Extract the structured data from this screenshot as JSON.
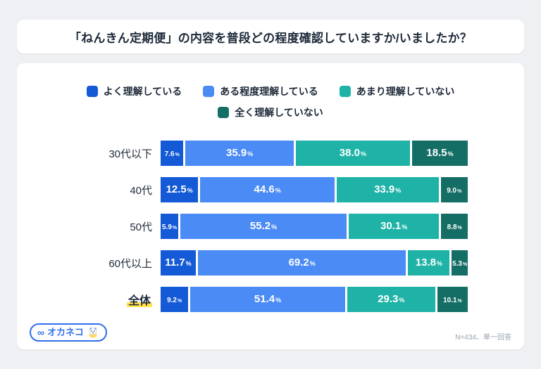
{
  "title": {
    "text": "「ねんきん定期便」の内容を普段どの程度確認していますか/いましたか？"
  },
  "legend": [
    {
      "label": "よく理解している",
      "color": "#1459d6"
    },
    {
      "label": "ある程度理解している",
      "color": "#4b8bf5"
    },
    {
      "label": "あまり理解していない",
      "color": "#1eb3a6"
    },
    {
      "label": "全く理解していない",
      "color": "#156e66"
    }
  ],
  "chart_data": {
    "type": "bar",
    "stacked": true,
    "orientation": "horizontal",
    "categories": [
      "30代以下",
      "40代",
      "50代",
      "60代以上",
      "全体"
    ],
    "series": [
      {
        "name": "よく理解している",
        "color": "#1459d6",
        "values": [
          7.6,
          12.5,
          5.9,
          11.7,
          9.2
        ]
      },
      {
        "name": "ある程度理解している",
        "color": "#4b8bf5",
        "values": [
          35.9,
          44.6,
          55.2,
          69.2,
          51.4
        ]
      },
      {
        "name": "あまり理解していない",
        "color": "#1eb3a6",
        "values": [
          38.0,
          33.9,
          30.1,
          13.8,
          29.3
        ]
      },
      {
        "name": "全く理解していない",
        "color": "#156e66",
        "values": [
          18.5,
          9.0,
          8.8,
          5.3,
          10.1
        ]
      }
    ],
    "unit": "%",
    "xlim": [
      0,
      100
    ],
    "highlight_category": "全体",
    "highlight_color": "#ffe44d",
    "legend_position": "top",
    "grid": false
  },
  "footer": {
    "brand": "オカネコ",
    "note": "N=434、単一回答"
  }
}
